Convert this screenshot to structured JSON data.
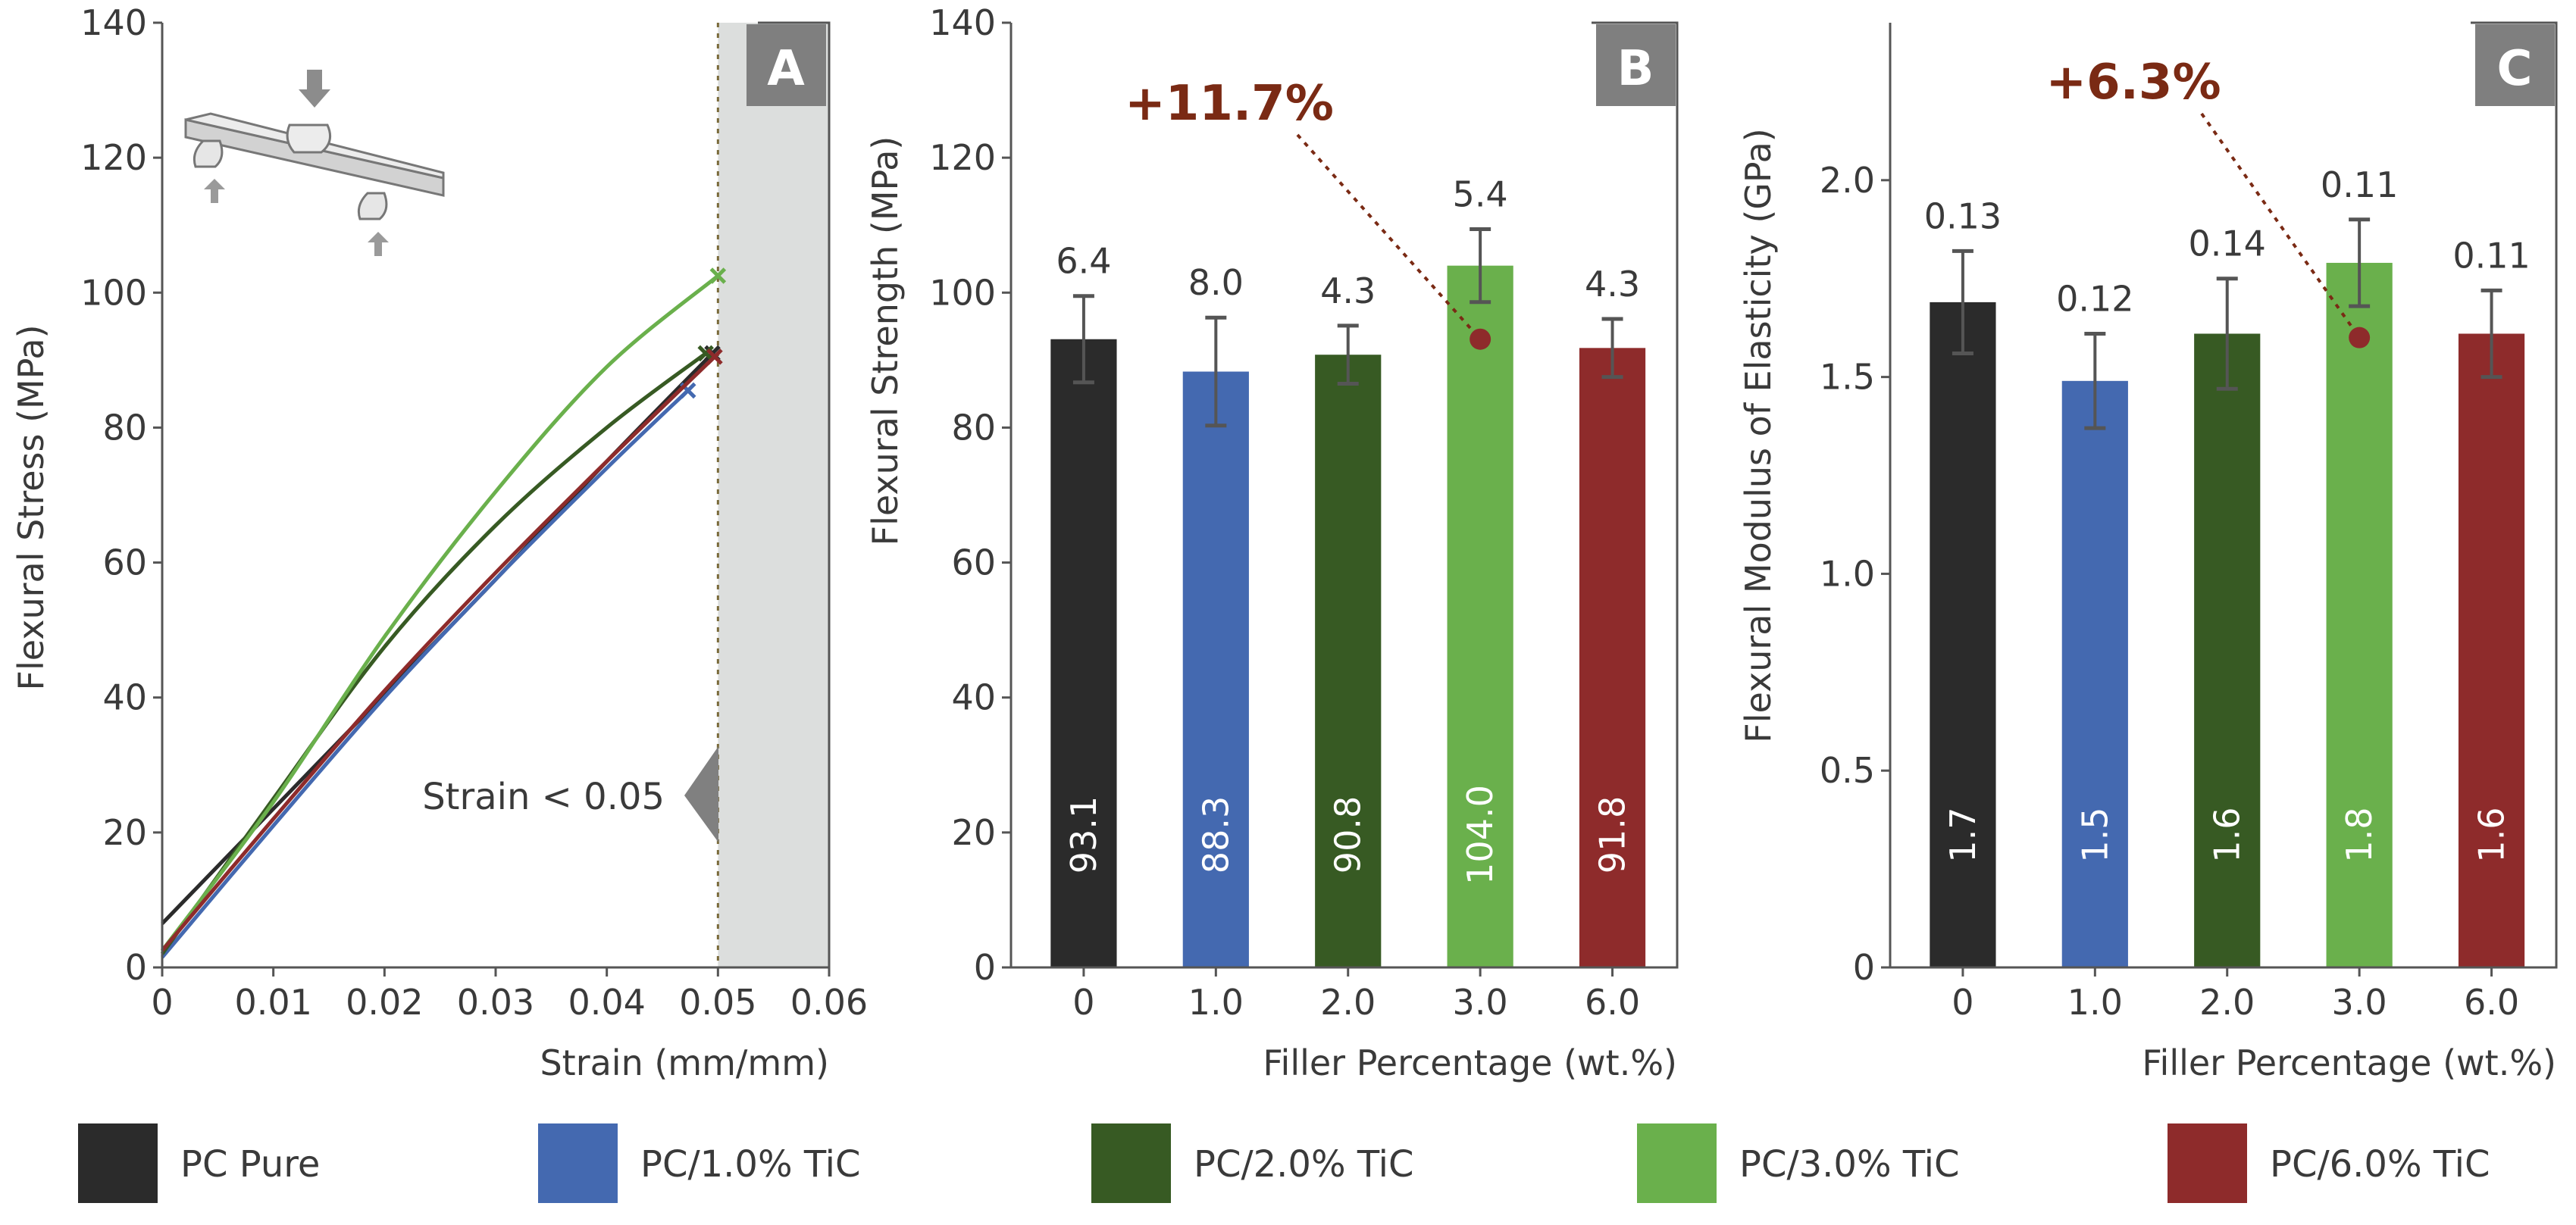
{
  "colors": {
    "pc_pure": "#2b2b2b",
    "pc_1": "#4469b0",
    "pc_2": "#375a23",
    "pc_3": "#6ab04c",
    "pc_6": "#8e2b2b",
    "annotation": "#7a2a14",
    "panel_label_bg": "#7f7f7f",
    "shade": "#dcdedd",
    "axis": "#555555",
    "error_bar": "#555555"
  },
  "legend": {
    "items": [
      {
        "label": "PC Pure",
        "color_key": "pc_pure"
      },
      {
        "label": "PC/1.0% TiC",
        "color_key": "pc_1"
      },
      {
        "label": "PC/2.0% TiC",
        "color_key": "pc_2"
      },
      {
        "label": "PC/3.0% TiC",
        "color_key": "pc_3"
      },
      {
        "label": "PC/6.0% TiC",
        "color_key": "pc_6"
      }
    ]
  },
  "chart_data": [
    {
      "panel": "A",
      "type": "line",
      "xlabel": "Strain (mm/mm)",
      "ylabel": "Flexural Stress (MPa)",
      "xlim": [
        0,
        0.06
      ],
      "ylim": [
        0,
        140
      ],
      "xticks": [
        0,
        0.01,
        0.02,
        0.03,
        0.04,
        0.05,
        0.06
      ],
      "xtick_labels": [
        "0",
        "0.01",
        "0.02",
        "0.03",
        "0.04",
        "0.05",
        "0.06"
      ],
      "yticks": [
        0,
        20,
        40,
        60,
        80,
        100,
        120,
        140
      ],
      "ytick_labels": [
        "0",
        "20",
        "40",
        "60",
        "80",
        "100",
        "120",
        "140"
      ],
      "annotation": "Strain < 0.05",
      "shaded_x_from": 0.05,
      "series": [
        {
          "name": "PC Pure",
          "color_key": "pc_pure",
          "x": [
            0,
            0.01,
            0.02,
            0.03,
            0.04,
            0.0495
          ],
          "y": [
            6.5,
            23.5,
            40.5,
            57.5,
            75.0,
            91.0
          ]
        },
        {
          "name": "PC/1.0% TiC",
          "color_key": "pc_1",
          "x": [
            0,
            0.01,
            0.02,
            0.03,
            0.04,
            0.0473
          ],
          "y": [
            1.5,
            21.0,
            40.0,
            57.5,
            74.0,
            85.5
          ]
        },
        {
          "name": "PC/2.0% TiC",
          "color_key": "pc_2",
          "x": [
            0,
            0.01,
            0.02,
            0.03,
            0.04,
            0.0489
          ],
          "y": [
            2.0,
            25.0,
            47.5,
            65.5,
            80.0,
            91.0
          ]
        },
        {
          "name": "PC/3.0% TiC",
          "color_key": "pc_3",
          "x": [
            0,
            0.01,
            0.02,
            0.03,
            0.04,
            0.05
          ],
          "y": [
            2.5,
            24.5,
            49.0,
            70.5,
            89.0,
            102.5
          ]
        },
        {
          "name": "PC/6.0% TiC",
          "color_key": "pc_6",
          "x": [
            0,
            0.01,
            0.02,
            0.03,
            0.04,
            0.0497
          ],
          "y": [
            2.5,
            22.0,
            41.0,
            58.5,
            75.0,
            90.5
          ]
        }
      ]
    },
    {
      "panel": "B",
      "type": "bar",
      "xlabel": "Filler Percentage (wt.%)",
      "ylabel": "Flexural Strength (MPa)",
      "ylim": [
        0,
        140
      ],
      "yticks": [
        0,
        20,
        40,
        60,
        80,
        100,
        120,
        140
      ],
      "ytick_labels": [
        "0",
        "20",
        "40",
        "60",
        "80",
        "100",
        "120",
        "140"
      ],
      "categories": [
        "0",
        "1.0",
        "2.0",
        "3.0",
        "6.0"
      ],
      "values": [
        93.1,
        88.3,
        90.8,
        104.0,
        91.8
      ],
      "value_labels": [
        "93.1",
        "88.3",
        "90.8",
        "104.0",
        "91.8"
      ],
      "errors": [
        6.4,
        8.0,
        4.3,
        5.4,
        4.3
      ],
      "error_labels": [
        "6.4",
        "8.0",
        "4.3",
        "5.4",
        "4.3"
      ],
      "color_keys": [
        "pc_pure",
        "pc_1",
        "pc_2",
        "pc_3",
        "pc_6"
      ],
      "improvement": "+11.7%",
      "improvement_point": {
        "category": "3.0",
        "y": 93.1
      }
    },
    {
      "panel": "C",
      "type": "bar",
      "xlabel": "Filler Percentage (wt.%)",
      "ylabel": "Flexural Modulus of Elasticity (GPa)",
      "ylim": [
        0,
        2.4
      ],
      "yticks": [
        0,
        0.5,
        1.0,
        1.5,
        2.0
      ],
      "ytick_labels": [
        "0",
        "0.5",
        "1.0",
        "1.5",
        "2.0"
      ],
      "categories": [
        "0",
        "1.0",
        "2.0",
        "3.0",
        "6.0"
      ],
      "values": [
        1.69,
        1.49,
        1.61,
        1.79,
        1.61
      ],
      "value_labels": [
        "1.7",
        "1.5",
        "1.6",
        "1.8",
        "1.6"
      ],
      "errors": [
        0.13,
        0.12,
        0.14,
        0.11,
        0.11
      ],
      "error_labels": [
        "0.13",
        "0.12",
        "0.14",
        "0.11",
        "0.11"
      ],
      "color_keys": [
        "pc_pure",
        "pc_1",
        "pc_2",
        "pc_3",
        "pc_6"
      ],
      "improvement": "+6.3%",
      "improvement_point": {
        "category": "3.0",
        "y": 1.6
      }
    }
  ]
}
